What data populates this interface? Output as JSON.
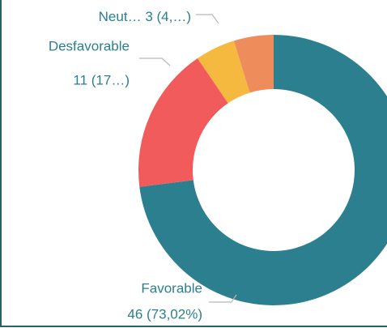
{
  "chart_data": {
    "type": "pie",
    "categories": [
      "Favorable",
      "Desfavorable",
      "Neut…",
      null
    ],
    "values": [
      46,
      11,
      3,
      3
    ],
    "value_labels": [
      "46 (73,02%)",
      "11 (17…)",
      "3 (4,…)",
      null
    ],
    "colors": [
      "#2b7f8e",
      "#f15b5b",
      "#f6b93f",
      "#ef8c5c"
    ],
    "donut": true
  }
}
